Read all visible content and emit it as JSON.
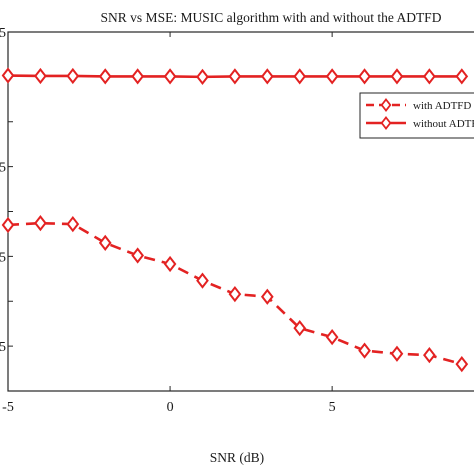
{
  "chart_data": {
    "type": "line",
    "title": "SNR vs MSE: MUSIC algorithm with and without the ADTFD",
    "xlabel": "SNR (dB)",
    "ylabel": "",
    "xlim": [
      -5,
      9.5
    ],
    "ylim": [
      0,
      0.8
    ],
    "x_ticks": [
      -5,
      0,
      5
    ],
    "x_tick_labels": [
      "-5",
      "0",
      "5"
    ],
    "y_ticks": [
      0,
      0.1,
      0.2,
      0.3,
      0.4,
      0.5,
      0.6,
      0.7,
      0.8
    ],
    "y_tick_labels": [
      "",
      "5",
      "",
      "5",
      "",
      "5",
      "",
      "",
      "5"
    ],
    "grid": false,
    "legend_position": "top-right",
    "x": [
      -5,
      -4,
      -3,
      -2,
      -1,
      0,
      1,
      2,
      3,
      4,
      5,
      6,
      7,
      8,
      9
    ],
    "series": [
      {
        "name": "with ADTFD",
        "line_style": "dashed",
        "marker": "diamond",
        "color": "#e32222",
        "values": [
          0.37,
          0.374,
          0.372,
          0.33,
          0.302,
          0.283,
          0.246,
          0.216,
          0.21,
          0.14,
          0.12,
          0.09,
          0.083,
          0.08,
          0.06
        ]
      },
      {
        "name": "without ADTFD",
        "line_style": "solid",
        "marker": "diamond",
        "color": "#e32222",
        "values": [
          0.703,
          0.702,
          0.702,
          0.701,
          0.701,
          0.701,
          0.7,
          0.701,
          0.701,
          0.701,
          0.701,
          0.701,
          0.701,
          0.701,
          0.701
        ]
      }
    ]
  }
}
